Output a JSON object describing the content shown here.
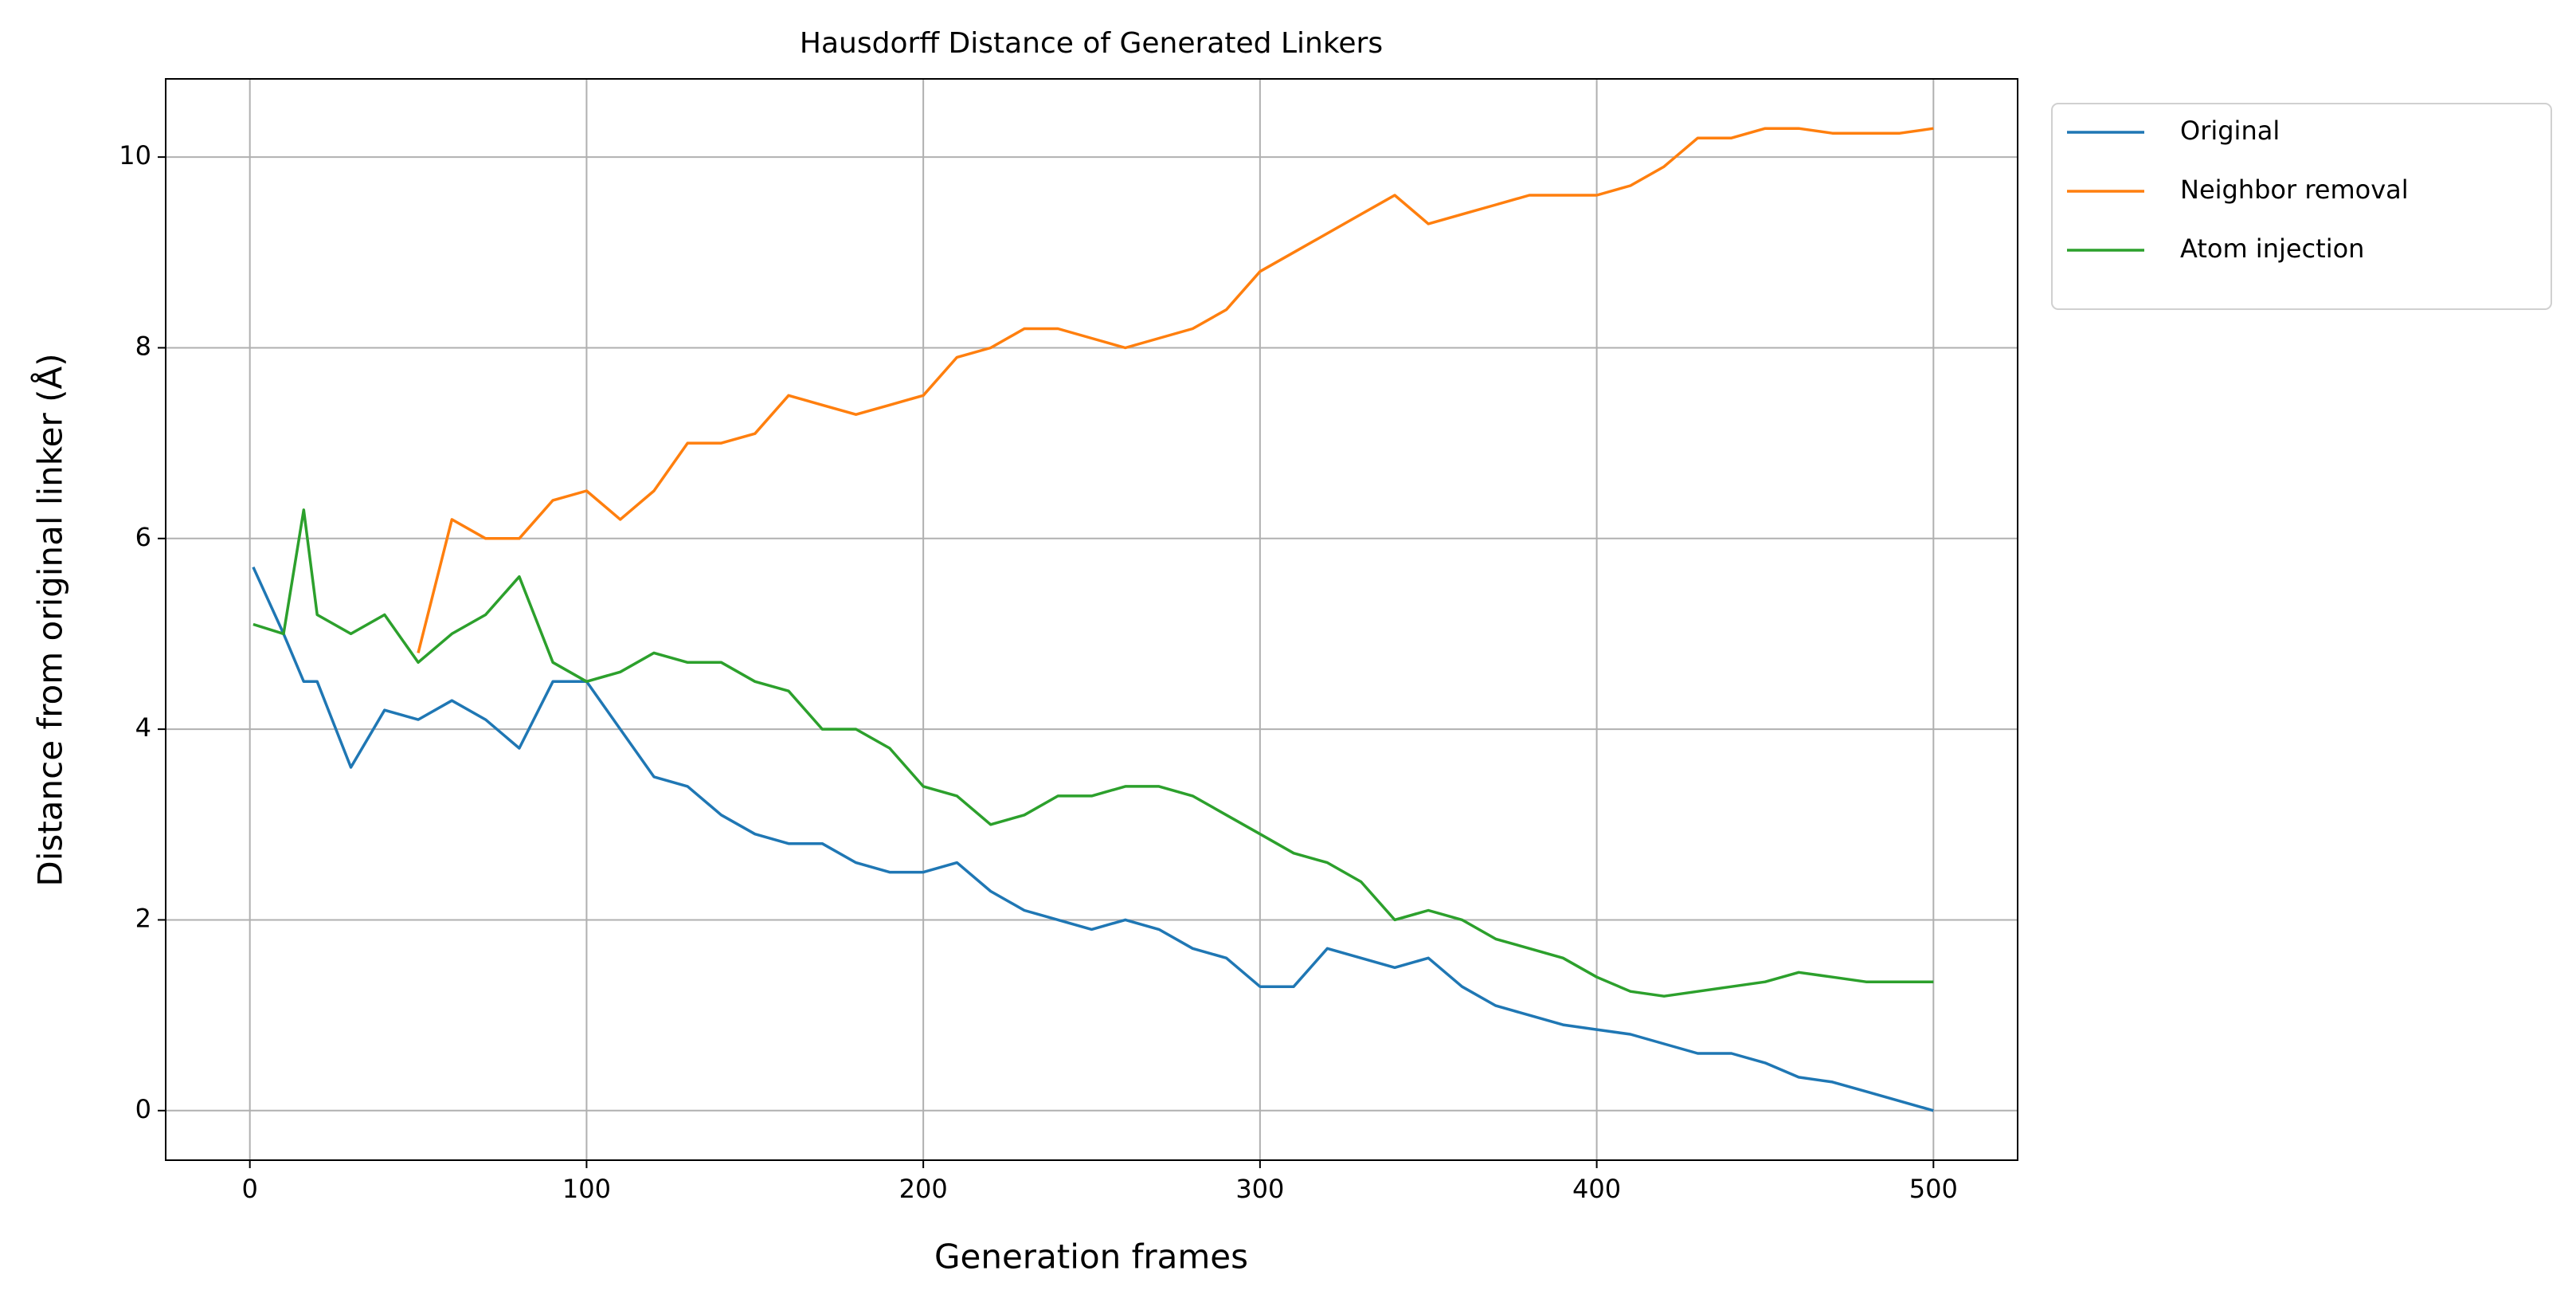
{
  "chart_data": {
    "type": "line",
    "title": "Hausdorff Distance of Generated Linkers",
    "x_label": "Generation frames",
    "y_label": "Distance from original linker (Å)",
    "x": [
      1,
      10,
      16,
      20,
      30,
      40,
      50,
      60,
      70,
      80,
      90,
      100,
      110,
      120,
      130,
      140,
      150,
      160,
      170,
      180,
      190,
      200,
      210,
      220,
      230,
      240,
      250,
      260,
      270,
      280,
      290,
      300,
      310,
      320,
      330,
      340,
      350,
      360,
      370,
      380,
      390,
      400,
      410,
      420,
      430,
      440,
      450,
      460,
      470,
      480,
      490,
      500
    ],
    "series": [
      {
        "name": "Original",
        "color": "#1f77b4",
        "values": [
          5.7,
          5.0,
          4.5,
          4.5,
          3.6,
          4.2,
          4.1,
          4.3,
          4.1,
          3.8,
          4.5,
          4.5,
          4.0,
          3.5,
          3.4,
          3.1,
          2.9,
          2.8,
          2.8,
          2.6,
          2.5,
          2.5,
          2.6,
          2.3,
          2.1,
          2.0,
          1.9,
          2.0,
          1.9,
          1.7,
          1.6,
          1.3,
          1.3,
          1.7,
          1.6,
          1.5,
          1.6,
          1.3,
          1.1,
          1.0,
          0.9,
          0.85,
          0.8,
          0.7,
          0.6,
          0.6,
          0.5,
          0.35,
          0.3,
          0.2,
          0.1,
          0.0
        ]
      },
      {
        "name": "Neighbor removal",
        "color": "#ff7f0e",
        "values": [
          null,
          null,
          null,
          null,
          null,
          null,
          4.8,
          6.2,
          6.0,
          6.0,
          6.4,
          6.5,
          6.2,
          6.5,
          7.0,
          7.0,
          7.1,
          7.5,
          7.4,
          7.3,
          7.4,
          7.5,
          7.9,
          8.0,
          8.2,
          8.2,
          8.1,
          8.0,
          8.1,
          8.2,
          8.4,
          8.8,
          9.0,
          9.2,
          9.4,
          9.6,
          9.3,
          9.4,
          9.5,
          9.6,
          9.6,
          9.6,
          9.7,
          9.9,
          10.2,
          10.2,
          10.3,
          10.3,
          10.25,
          10.25,
          10.25,
          10.3
        ]
      },
      {
        "name": "Atom injection",
        "color": "#2ca02c",
        "values": [
          5.1,
          5.0,
          6.3,
          5.2,
          5.0,
          5.2,
          4.7,
          5.0,
          5.2,
          5.6,
          4.7,
          4.5,
          4.6,
          4.8,
          4.7,
          4.7,
          4.5,
          4.4,
          4.0,
          4.0,
          3.8,
          3.4,
          3.3,
          3.0,
          3.1,
          3.3,
          3.3,
          3.4,
          3.4,
          3.3,
          3.1,
          2.9,
          2.7,
          2.6,
          2.4,
          2.0,
          2.1,
          2.0,
          1.8,
          1.7,
          1.6,
          1.4,
          1.25,
          1.2,
          1.25,
          1.3,
          1.35,
          1.45,
          1.4,
          1.35,
          1.35,
          1.35
        ]
      }
    ],
    "xlim": [
      -25,
      525
    ],
    "xticks": [
      0,
      100,
      200,
      300,
      400,
      500
    ],
    "ylim": [
      -0.52,
      10.82
    ],
    "yticks": [
      0,
      2,
      4,
      6,
      8,
      10
    ],
    "grid": true,
    "legend": "outside upper right"
  }
}
